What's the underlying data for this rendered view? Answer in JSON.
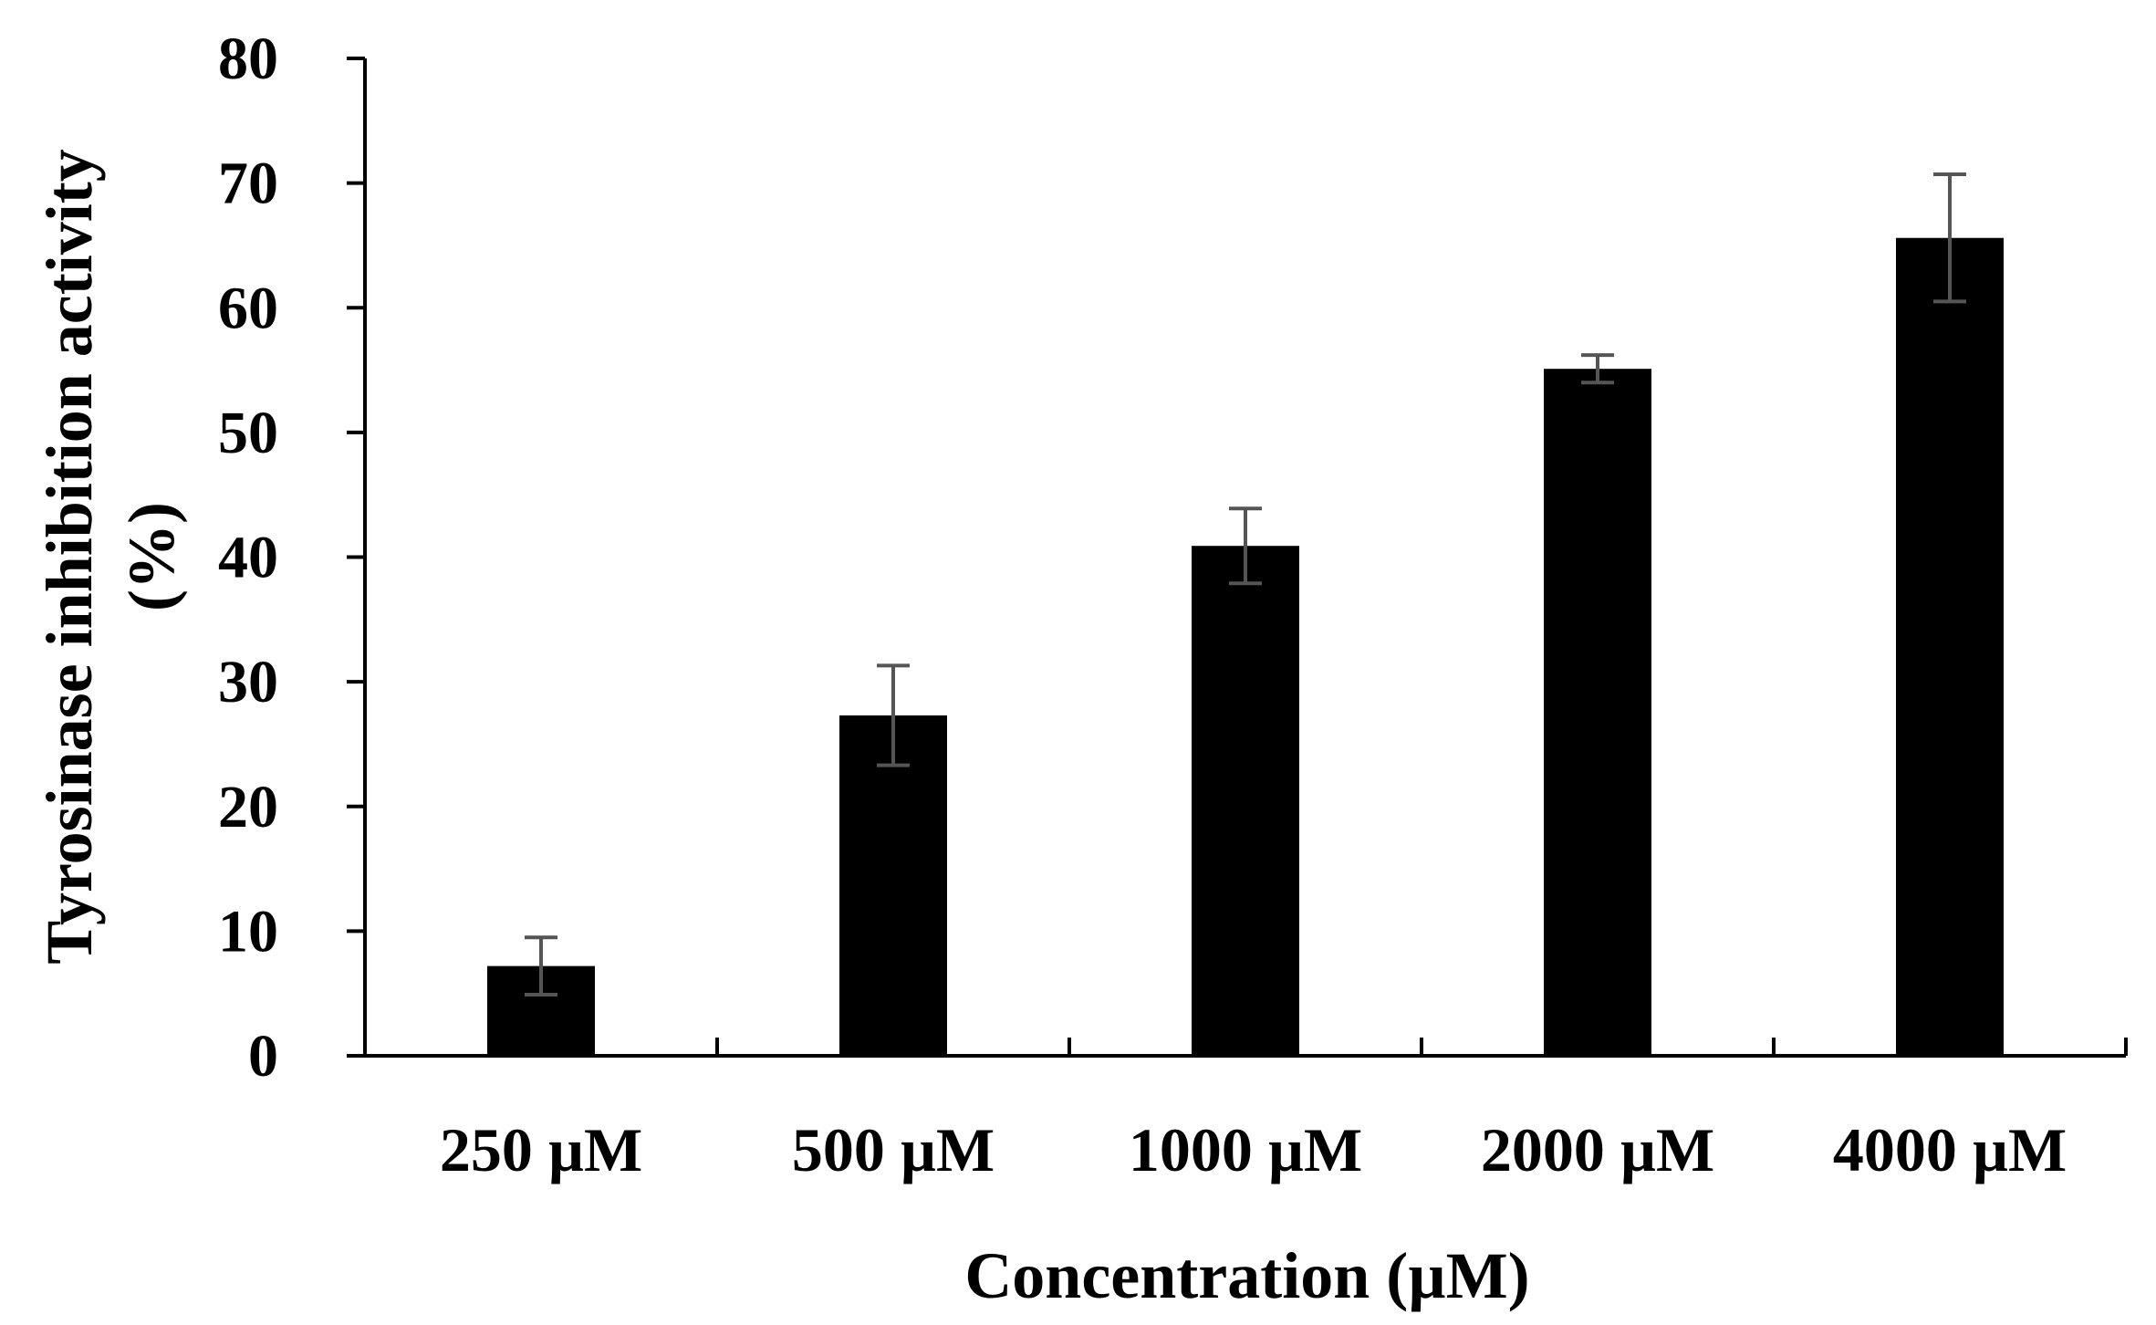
{
  "chart_data": {
    "type": "bar",
    "title": "",
    "categories": [
      "250 µM",
      "500 µM",
      "1000 µM",
      "2000 µM",
      "4000 µM"
    ],
    "values": [
      7.2,
      27.3,
      40.9,
      55.1,
      65.6
    ],
    "errors": [
      2.3,
      4.0,
      3.0,
      1.1,
      5.1
    ],
    "xlabel": "Concentration (µM)",
    "ylabel_line1": "Tyrosinase inhibition activity",
    "ylabel_line2": "(%)",
    "ylim": [
      0,
      80
    ],
    "yticks": [
      0,
      10,
      20,
      30,
      40,
      50,
      60,
      70,
      80
    ],
    "grid": false,
    "legend": "none",
    "colors": {
      "bar": "#000000",
      "error_bar": "#555555",
      "axis": "#000000"
    }
  }
}
